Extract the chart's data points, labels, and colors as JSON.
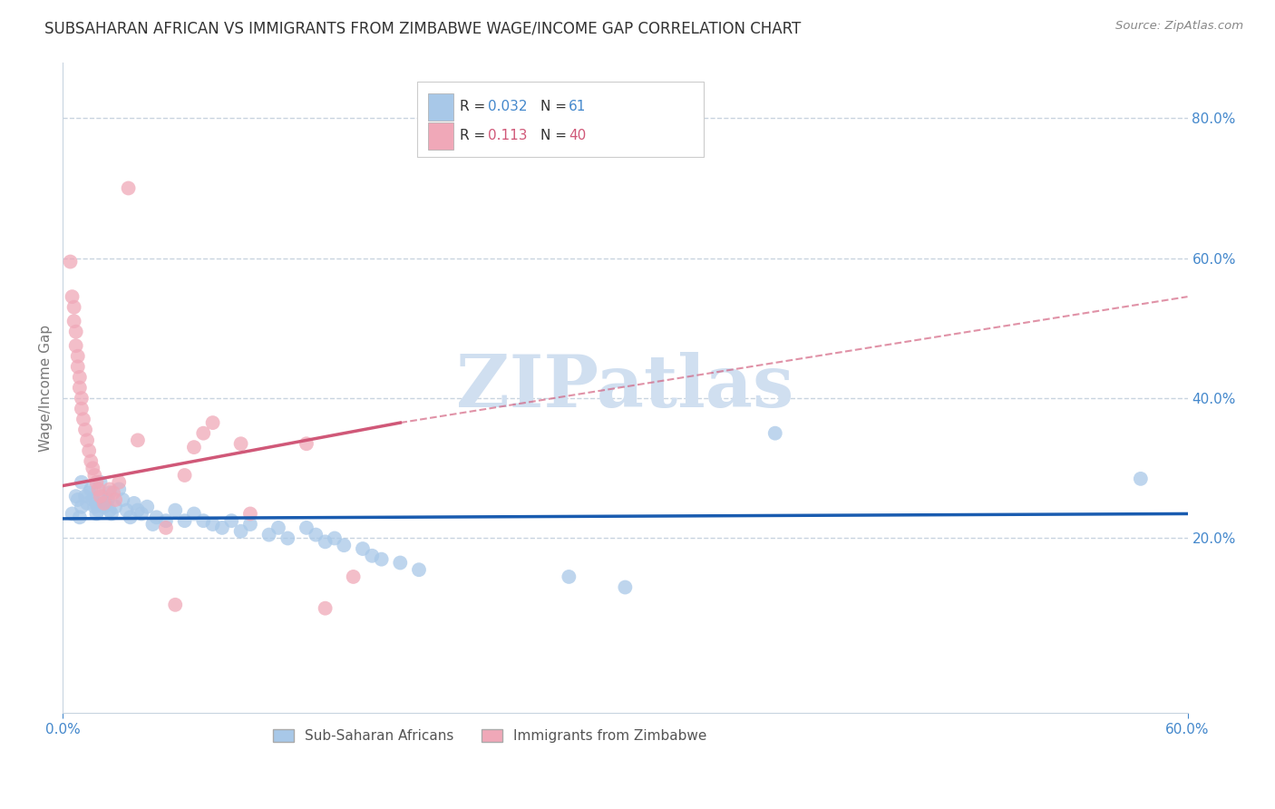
{
  "title": "SUBSAHARAN AFRICAN VS IMMIGRANTS FROM ZIMBABWE WAGE/INCOME GAP CORRELATION CHART",
  "source": "Source: ZipAtlas.com",
  "ylabel": "Wage/Income Gap",
  "xlim": [
    0.0,
    0.6
  ],
  "ylim": [
    -0.05,
    0.88
  ],
  "xticks": [
    0.0,
    0.6
  ],
  "xticklabels": [
    "0.0%",
    "60.0%"
  ],
  "yticks_right": [
    0.2,
    0.4,
    0.6,
    0.8
  ],
  "ytick_labels_right": [
    "20.0%",
    "40.0%",
    "60.0%",
    "80.0%"
  ],
  "blue_color": "#a8c8e8",
  "pink_color": "#f0a8b8",
  "blue_line_color": "#1a5cb0",
  "pink_line_color": "#d05878",
  "blue_R": "0.032",
  "blue_N": "61",
  "pink_R": "0.113",
  "pink_N": "40",
  "watermark": "ZIPatlas",
  "watermark_color": "#d0dff0",
  "grid_color": "#c8d4e0",
  "background_color": "#ffffff",
  "title_fontsize": 12,
  "axis_label_color": "#4488cc",
  "blue_line_y0": 0.228,
  "blue_line_y1": 0.235,
  "pink_line_x0": 0.0,
  "pink_line_y0": 0.275,
  "pink_line_x_break": 0.18,
  "pink_line_y_break": 0.365,
  "pink_line_x1": 0.6,
  "pink_line_y1": 0.545,
  "blue_scatter_x": [
    0.005,
    0.007,
    0.008,
    0.009,
    0.01,
    0.01,
    0.012,
    0.013,
    0.014,
    0.015,
    0.016,
    0.017,
    0.018,
    0.018,
    0.019,
    0.02,
    0.021,
    0.022,
    0.023,
    0.024,
    0.025,
    0.025,
    0.026,
    0.028,
    0.03,
    0.032,
    0.034,
    0.036,
    0.038,
    0.04,
    0.042,
    0.045,
    0.048,
    0.05,
    0.055,
    0.06,
    0.065,
    0.07,
    0.075,
    0.08,
    0.085,
    0.09,
    0.095,
    0.1,
    0.11,
    0.115,
    0.12,
    0.13,
    0.135,
    0.14,
    0.145,
    0.15,
    0.16,
    0.165,
    0.17,
    0.18,
    0.19,
    0.27,
    0.3,
    0.38,
    0.575
  ],
  "blue_scatter_y": [
    0.235,
    0.26,
    0.255,
    0.23,
    0.28,
    0.245,
    0.26,
    0.25,
    0.265,
    0.27,
    0.255,
    0.245,
    0.235,
    0.25,
    0.24,
    0.28,
    0.26,
    0.245,
    0.25,
    0.255,
    0.24,
    0.265,
    0.235,
    0.245,
    0.27,
    0.255,
    0.24,
    0.23,
    0.25,
    0.24,
    0.235,
    0.245,
    0.22,
    0.23,
    0.225,
    0.24,
    0.225,
    0.235,
    0.225,
    0.22,
    0.215,
    0.225,
    0.21,
    0.22,
    0.205,
    0.215,
    0.2,
    0.215,
    0.205,
    0.195,
    0.2,
    0.19,
    0.185,
    0.175,
    0.17,
    0.165,
    0.155,
    0.145,
    0.13,
    0.35,
    0.285
  ],
  "pink_scatter_x": [
    0.004,
    0.005,
    0.006,
    0.006,
    0.007,
    0.007,
    0.008,
    0.008,
    0.009,
    0.009,
    0.01,
    0.01,
    0.011,
    0.012,
    0.013,
    0.014,
    0.015,
    0.016,
    0.017,
    0.018,
    0.019,
    0.02,
    0.022,
    0.025,
    0.027,
    0.028,
    0.03,
    0.035,
    0.04,
    0.055,
    0.06,
    0.065,
    0.07,
    0.075,
    0.08,
    0.095,
    0.1,
    0.13,
    0.14,
    0.155
  ],
  "pink_scatter_y": [
    0.595,
    0.545,
    0.53,
    0.51,
    0.495,
    0.475,
    0.46,
    0.445,
    0.43,
    0.415,
    0.4,
    0.385,
    0.37,
    0.355,
    0.34,
    0.325,
    0.31,
    0.3,
    0.29,
    0.28,
    0.27,
    0.26,
    0.25,
    0.27,
    0.265,
    0.255,
    0.28,
    0.7,
    0.34,
    0.215,
    0.105,
    0.29,
    0.33,
    0.35,
    0.365,
    0.335,
    0.235,
    0.335,
    0.1,
    0.145
  ]
}
